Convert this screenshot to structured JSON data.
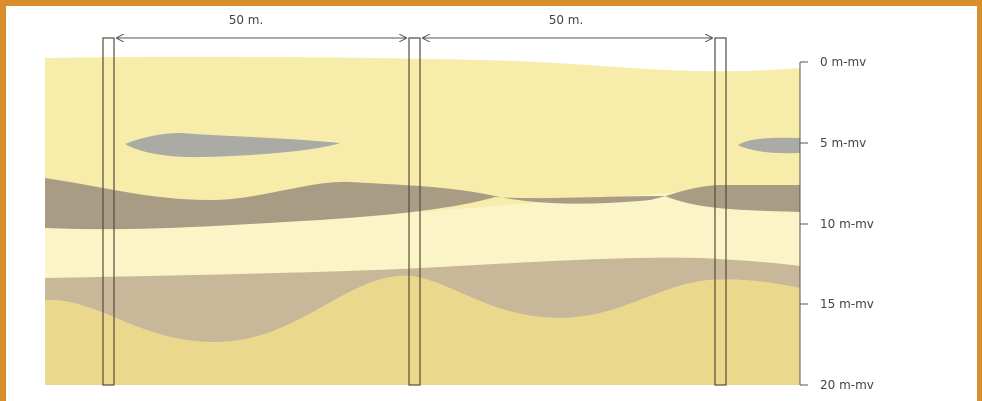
{
  "distance_labels": [
    "50 m.",
    "50 m."
  ],
  "depth_labels": [
    "0 m-mv",
    "5 m-mv",
    "10 m-mv",
    "15 m-mv",
    "20 m-mv"
  ],
  "colors": {
    "frame": "#d98f2b",
    "sand_top": "#f7ecaa",
    "sand_light": "#fbf4c6",
    "clay_dark": "#a89c85",
    "clay_light": "#c9b79a",
    "sand_bottom": "#ead98c",
    "gray_lens": "#a9aba4",
    "wells": "#5a4a3a",
    "axis": "#555555"
  }
}
